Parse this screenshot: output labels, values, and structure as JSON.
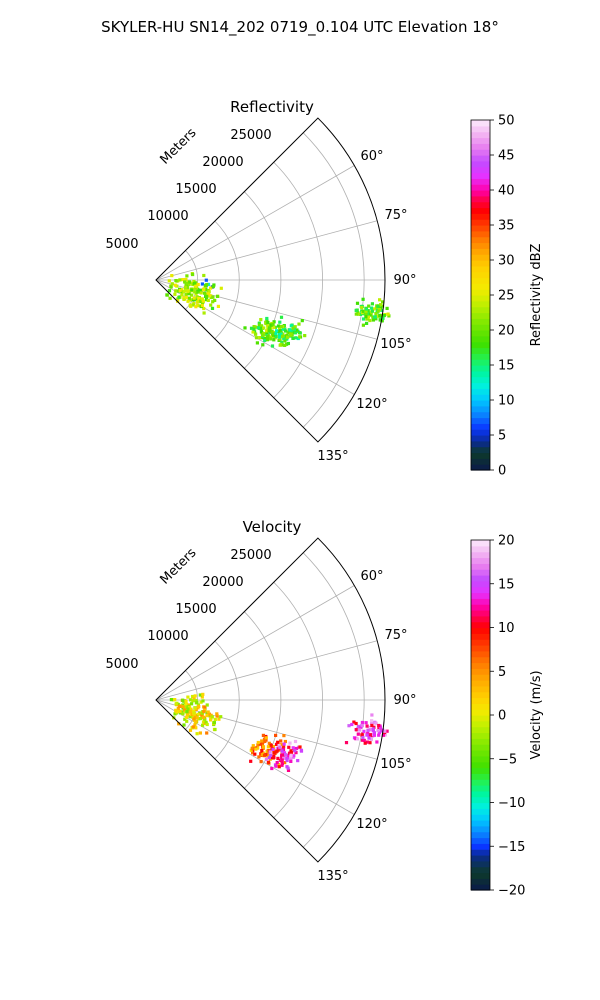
{
  "suptitle": "SKYLER-HU  SN14_202  0719_0.104 UTC Elevation 18°",
  "chart_data": [
    {
      "type": "polar-sector",
      "title": "Reflectivity",
      "radial_label": "Meters",
      "r_ticks": [
        "5000",
        "10000",
        "15000",
        "20000",
        "25000"
      ],
      "r_max": 27500,
      "theta_range_deg": [
        45,
        135
      ],
      "theta_ticks": [
        "60°",
        "75°",
        "90°",
        "105°",
        "120°",
        "135°"
      ],
      "grid": true,
      "colorbar": {
        "label": "Reflectivity dBZ",
        "min": 0,
        "max": 50,
        "ticks": [
          "0",
          "5",
          "10",
          "15",
          "20",
          "25",
          "30",
          "35",
          "40",
          "45",
          "50"
        ]
      },
      "echoes": [
        {
          "az": 94,
          "r": 5700,
          "value": 8,
          "note": "small weak echo"
        },
        {
          "az": 100,
          "r": 3600,
          "value": 22
        },
        {
          "az": 111,
          "r": 5600,
          "value": 22
        },
        {
          "az": 114,
          "r": 14500,
          "value": 20
        },
        {
          "az": 113,
          "r": 16500,
          "value": 18
        },
        {
          "az": 98,
          "r": 25600,
          "value": 20
        }
      ]
    },
    {
      "type": "polar-sector",
      "title": "Velocity",
      "radial_label": "Meters",
      "r_ticks": [
        "5000",
        "10000",
        "15000",
        "20000",
        "25000"
      ],
      "r_max": 27500,
      "theta_range_deg": [
        45,
        135
      ],
      "theta_ticks": [
        "60°",
        "75°",
        "90°",
        "105°",
        "120°",
        "135°"
      ],
      "grid": true,
      "colorbar": {
        "label": "Velocity (m/s)",
        "min": -20,
        "max": 20,
        "ticks": [
          "−20",
          "−15",
          "−10",
          "−5",
          "0",
          "5",
          "10",
          "15",
          "20"
        ]
      },
      "echoes": [
        {
          "az": 100,
          "r": 3600,
          "value": 0
        },
        {
          "az": 111,
          "r": 5600,
          "value": 1
        },
        {
          "az": 114,
          "r": 14500,
          "value": 6
        },
        {
          "az": 113,
          "r": 16500,
          "value": 14
        },
        {
          "az": 98,
          "r": 25600,
          "value": 15
        }
      ]
    }
  ]
}
